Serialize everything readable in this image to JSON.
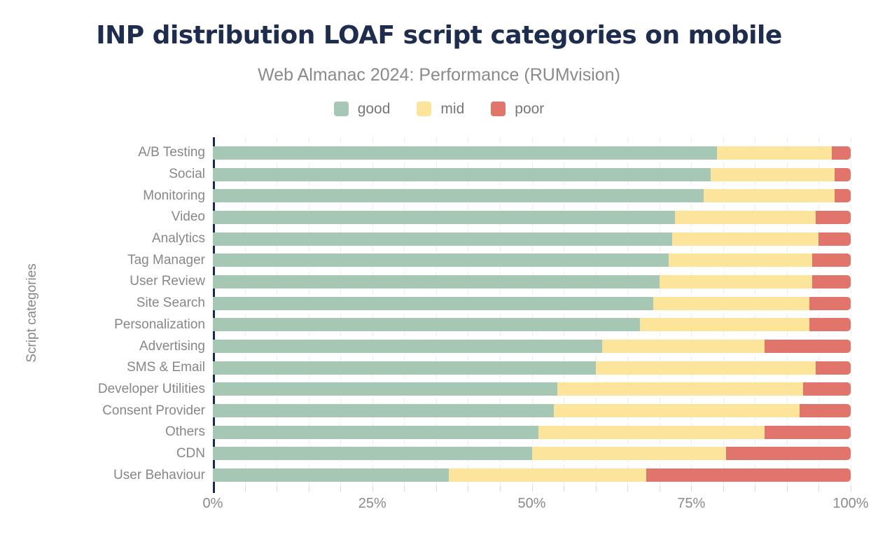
{
  "page": {
    "title": "INP distribution LOAF script categories on mobile",
    "subtitle": "Web Almanac 2024: Performance (RUMvision)"
  },
  "legend": [
    {
      "label": "good",
      "color": "#a6c7b4"
    },
    {
      "label": "mid",
      "color": "#fce49a"
    },
    {
      "label": "poor",
      "color": "#e1756b"
    }
  ],
  "colors": {
    "title": "#1e2d4e",
    "axis": "#1b2a4a",
    "text_gray": "#878787",
    "gridline": "#ececec",
    "good": "#a6c7b4",
    "mid": "#fce49a",
    "poor": "#e1756b"
  },
  "chart_data": {
    "type": "bar",
    "orientation": "horizontal",
    "stacked": true,
    "title": "INP distribution LOAF script categories on mobile",
    "subtitle": "Web Almanac 2024: Performance (RUMvision)",
    "xlabel": "",
    "ylabel": "Script categories",
    "unit": "%",
    "xlim": [
      0,
      100
    ],
    "x_tick_values": [
      0,
      25,
      50,
      75,
      100
    ],
    "x_ticks": [
      "0%",
      "25%",
      "50%",
      "75%",
      "100%"
    ],
    "gridline_step": 5,
    "grid": true,
    "legend_position": "top",
    "categories": [
      "A/B Testing",
      "Social",
      "Monitoring",
      "Video",
      "Analytics",
      "Tag Manager",
      "User Review",
      "Site Search",
      "Personalization",
      "Advertising",
      "SMS & Email",
      "Developer Utilities",
      "Consent Provider",
      "Others",
      "CDN",
      "User Behaviour"
    ],
    "series": [
      {
        "name": "good",
        "color": "#a6c7b4",
        "values": [
          79,
          78,
          77,
          72.5,
          72,
          71.5,
          70,
          69,
          67,
          61,
          60,
          54,
          53.5,
          51,
          50,
          37
        ]
      },
      {
        "name": "mid",
        "color": "#fce49a",
        "values": [
          18,
          19.5,
          20.5,
          22,
          23,
          22.5,
          24,
          24.5,
          26.5,
          25.5,
          34.5,
          38.5,
          38.5,
          35.5,
          30.5,
          31
        ]
      },
      {
        "name": "poor",
        "color": "#e1756b",
        "values": [
          3,
          2.5,
          2.5,
          5.5,
          5,
          6,
          6,
          6.5,
          6.5,
          13.5,
          5.5,
          7.5,
          8,
          13.5,
          19.5,
          32
        ]
      }
    ]
  }
}
